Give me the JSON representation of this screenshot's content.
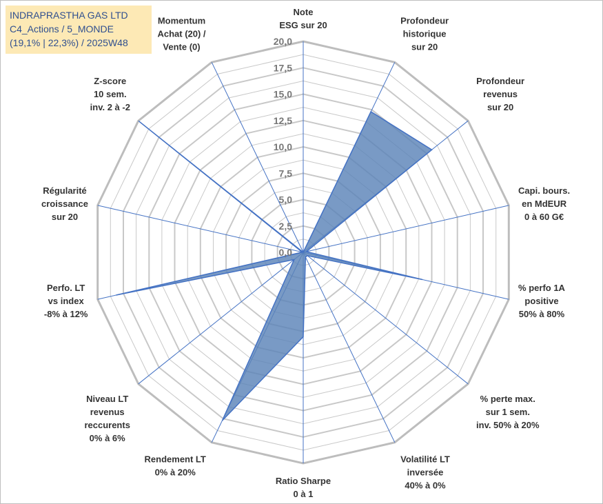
{
  "info": {
    "company": "INDRAPRASTHA GAS LTD",
    "portfolio": "C4_Actions / 5_MONDE",
    "stats": "(19,1% | 22,3%) / 2025W48"
  },
  "colors": {
    "fill": "#5b84b8",
    "spoke": "#4472c4",
    "grid": "#c8c8c8",
    "grid_outer": "#bdbdbd"
  },
  "chart_data": {
    "type": "radar",
    "scale": [
      0,
      20
    ],
    "ticks": [
      "0,0",
      "2,5",
      "5,0",
      "7,5",
      "10,0",
      "12,5",
      "15,0",
      "17,5",
      "20,0"
    ],
    "axes": [
      {
        "label": [
          "Note",
          "ESG sur 20"
        ],
        "value": 0
      },
      {
        "label": [
          "Profondeur",
          "historique",
          "sur 20"
        ],
        "value": 14.8
      },
      {
        "label": [
          "Profondeur",
          "revenus",
          "sur 20"
        ],
        "value": 15.6
      },
      {
        "label": [
          "Capi. bours.",
          "en MdEUR",
          "0 à 60 G€"
        ],
        "value": 0.3
      },
      {
        "label": [
          "% perfo 1A",
          "positive",
          "50% à 80%"
        ],
        "value": 11.6
      },
      {
        "label": [
          "% perte max.",
          "sur 1 sem.",
          "inv. 50% à 20%"
        ],
        "value": 0.5
      },
      {
        "label": [
          "Volatilité LT",
          "inversée",
          "40% à 0%"
        ],
        "value": 0.5
      },
      {
        "label": [
          "Ratio Sharpe",
          "0 à 1"
        ],
        "value": 8
      },
      {
        "label": [
          "Rendement LT",
          "0% à 20%"
        ],
        "value": 17.7
      },
      {
        "label": [
          "Niveau LT",
          "revenus",
          "reccurents",
          "0% à 6%"
        ],
        "value": 1.1
      },
      {
        "label": [
          "Perfo. LT",
          "vs index",
          "-8% à 12%"
        ],
        "value": 18.2
      },
      {
        "label": [
          "Régularité",
          "croissance",
          "sur 20"
        ],
        "value": 0.1
      },
      {
        "label": [
          "Z-score",
          "10 sem.",
          "inv. 2 à -2"
        ],
        "value": 19.9
      },
      {
        "label": [
          "Momentum",
          "Achat (20) /",
          "Vente (0)"
        ],
        "value": 0
      }
    ]
  }
}
